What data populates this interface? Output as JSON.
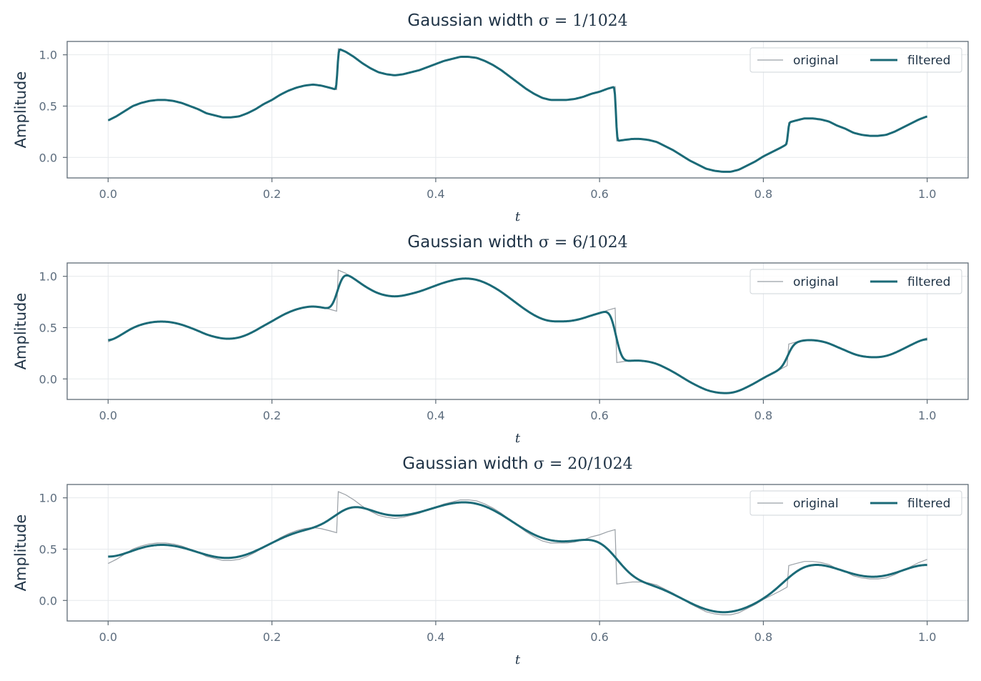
{
  "chart_data": [
    {
      "type": "line",
      "title_text": "Gaussian width ",
      "title_math": "σ = 1/1024",
      "sigma": 0.0009765625,
      "xlabel": "t",
      "ylabel": "Amplitude",
      "xlim": [
        -0.05,
        1.05
      ],
      "ylim": [
        -0.2,
        1.13
      ],
      "xticks": [
        0.0,
        0.2,
        0.4,
        0.6,
        0.8,
        1.0
      ],
      "xtick_labels": [
        "0.0",
        "0.2",
        "0.4",
        "0.6",
        "0.8",
        "1.0"
      ],
      "yticks": [
        0.0,
        0.5,
        1.0
      ],
      "ytick_labels": [
        "0.0",
        "0.5",
        "1.0"
      ],
      "grid": true,
      "legend": {
        "position": "top-right",
        "columns": 2,
        "entries": [
          "original",
          "filtered"
        ]
      },
      "series": [
        {
          "name": "original",
          "color": "#9aa0a6",
          "width": "thin"
        },
        {
          "name": "filtered",
          "color": "#1b6a77",
          "width": "thick"
        }
      ]
    },
    {
      "type": "line",
      "title_text": "Gaussian width ",
      "title_math": "σ = 6/1024",
      "sigma": 0.005859375,
      "xlabel": "t",
      "ylabel": "Amplitude",
      "xlim": [
        -0.05,
        1.05
      ],
      "ylim": [
        -0.2,
        1.13
      ],
      "xticks": [
        0.0,
        0.2,
        0.4,
        0.6,
        0.8,
        1.0
      ],
      "xtick_labels": [
        "0.0",
        "0.2",
        "0.4",
        "0.6",
        "0.8",
        "1.0"
      ],
      "yticks": [
        0.0,
        0.5,
        1.0
      ],
      "ytick_labels": [
        "0.0",
        "0.5",
        "1.0"
      ],
      "grid": true,
      "legend": {
        "position": "top-right",
        "columns": 2,
        "entries": [
          "original",
          "filtered"
        ]
      },
      "series": [
        {
          "name": "original",
          "color": "#9aa0a6",
          "width": "thin"
        },
        {
          "name": "filtered",
          "color": "#1b6a77",
          "width": "thick"
        }
      ]
    },
    {
      "type": "line",
      "title_text": "Gaussian width ",
      "title_math": "σ = 20/1024",
      "sigma": 0.01953125,
      "xlabel": "t",
      "ylabel": "Amplitude",
      "xlim": [
        -0.05,
        1.05
      ],
      "ylim": [
        -0.2,
        1.13
      ],
      "xticks": [
        0.0,
        0.2,
        0.4,
        0.6,
        0.8,
        1.0
      ],
      "xtick_labels": [
        "0.0",
        "0.2",
        "0.4",
        "0.6",
        "0.8",
        "1.0"
      ],
      "yticks": [
        0.0,
        0.5,
        1.0
      ],
      "ytick_labels": [
        "0.0",
        "0.5",
        "1.0"
      ],
      "grid": true,
      "legend": {
        "position": "top-right",
        "columns": 2,
        "entries": [
          "original",
          "filtered"
        ]
      },
      "series": [
        {
          "name": "original",
          "color": "#9aa0a6",
          "width": "thin"
        },
        {
          "name": "filtered",
          "color": "#1b6a77",
          "width": "thick"
        }
      ]
    }
  ],
  "original_signal": {
    "x": [
      0.0,
      0.01,
      0.02,
      0.03,
      0.04,
      0.05,
      0.06,
      0.07,
      0.08,
      0.09,
      0.1,
      0.11,
      0.12,
      0.13,
      0.14,
      0.15,
      0.16,
      0.17,
      0.18,
      0.19,
      0.2,
      0.21,
      0.22,
      0.23,
      0.24,
      0.25,
      0.26,
      0.27,
      0.279,
      0.281,
      0.29,
      0.3,
      0.31,
      0.32,
      0.33,
      0.34,
      0.35,
      0.36,
      0.37,
      0.38,
      0.39,
      0.4,
      0.41,
      0.42,
      0.43,
      0.44,
      0.45,
      0.46,
      0.47,
      0.48,
      0.49,
      0.5,
      0.51,
      0.52,
      0.53,
      0.54,
      0.55,
      0.56,
      0.57,
      0.58,
      0.59,
      0.6,
      0.61,
      0.619,
      0.621,
      0.63,
      0.64,
      0.65,
      0.66,
      0.67,
      0.68,
      0.69,
      0.7,
      0.71,
      0.72,
      0.73,
      0.74,
      0.75,
      0.76,
      0.77,
      0.78,
      0.79,
      0.8,
      0.81,
      0.82,
      0.829,
      0.831,
      0.84,
      0.85,
      0.86,
      0.87,
      0.88,
      0.89,
      0.9,
      0.91,
      0.92,
      0.93,
      0.94,
      0.95,
      0.96,
      0.97,
      0.98,
      0.99,
      1.0
    ],
    "y": [
      0.36,
      0.4,
      0.45,
      0.5,
      0.53,
      0.55,
      0.56,
      0.56,
      0.55,
      0.53,
      0.5,
      0.47,
      0.43,
      0.41,
      0.39,
      0.39,
      0.4,
      0.43,
      0.47,
      0.52,
      0.56,
      0.61,
      0.65,
      0.68,
      0.7,
      0.71,
      0.7,
      0.68,
      0.66,
      1.06,
      1.03,
      0.98,
      0.92,
      0.87,
      0.83,
      0.81,
      0.8,
      0.81,
      0.83,
      0.85,
      0.88,
      0.91,
      0.94,
      0.96,
      0.98,
      0.98,
      0.97,
      0.94,
      0.9,
      0.85,
      0.79,
      0.73,
      0.67,
      0.62,
      0.58,
      0.56,
      0.56,
      0.56,
      0.57,
      0.59,
      0.62,
      0.64,
      0.67,
      0.69,
      0.16,
      0.17,
      0.18,
      0.18,
      0.17,
      0.15,
      0.11,
      0.07,
      0.02,
      -0.03,
      -0.07,
      -0.11,
      -0.13,
      -0.14,
      -0.14,
      -0.12,
      -0.08,
      -0.04,
      0.01,
      0.05,
      0.09,
      0.13,
      0.34,
      0.36,
      0.38,
      0.38,
      0.37,
      0.35,
      0.31,
      0.28,
      0.24,
      0.22,
      0.21,
      0.21,
      0.22,
      0.25,
      0.29,
      0.33,
      0.37,
      0.4
    ]
  }
}
